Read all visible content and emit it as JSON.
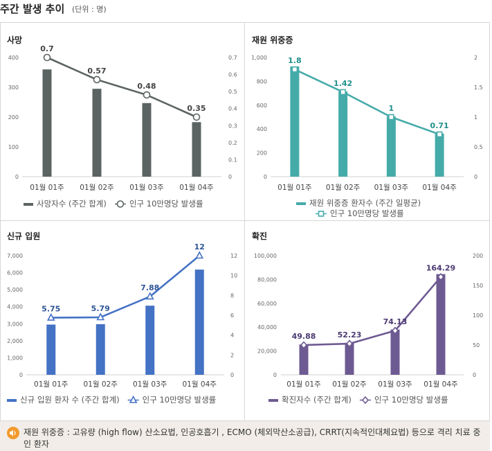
{
  "header": {
    "title": "주간 발생 추이",
    "unit": "(단위 : 명)"
  },
  "chart_data": [
    {
      "type": "bar+line",
      "title": "사망",
      "categories": [
        "01월 01주",
        "01월 02주",
        "01월 03주",
        "01월 04주"
      ],
      "bar_series": {
        "name": "사망자수 (주간 합계)",
        "values": [
          360,
          295,
          247,
          183
        ],
        "color": "#5b6462"
      },
      "line_series": {
        "name": "인구 10만명당 발생률",
        "values": [
          0.7,
          0.57,
          0.48,
          0.35
        ],
        "labels": [
          "0.7",
          "0.57",
          "0.48",
          "0.35"
        ],
        "color": "#5b6462",
        "marker": "circle"
      },
      "y_left": {
        "ticks": [
          0,
          100,
          200,
          300,
          400
        ],
        "tick_labels": [
          "0",
          "100",
          "200",
          "300",
          "400"
        ],
        "range": [
          0,
          400
        ]
      },
      "y_right": {
        "ticks": [
          0,
          0.1,
          0.2,
          0.3,
          0.4,
          0.5,
          0.6,
          0.7
        ],
        "tick_labels": [
          "0",
          "0.1",
          "0.2",
          "0.3",
          "0.4",
          "0.5",
          "0.6",
          "0.7"
        ],
        "range": [
          0,
          0.7
        ]
      },
      "label_color": "#444444",
      "legend_wrap": false
    },
    {
      "type": "bar+line",
      "title": "재원 위중증",
      "categories": [
        "01월 01주",
        "01월 02주",
        "01월 03주",
        "01월 04주"
      ],
      "bar_series": {
        "name": "재원 위중증 환자수 (주간 일평균)",
        "values": [
          925,
          715,
          505,
          362
        ],
        "color": "#45aba9"
      },
      "line_series": {
        "name": "인구 10만명당 발생률",
        "values": [
          1.8,
          1.42,
          1.0,
          0.71
        ],
        "labels": [
          "1.8",
          "1.42",
          "1",
          "0.71"
        ],
        "color": "#45aba9",
        "marker": "square"
      },
      "y_left": {
        "ticks": [
          0,
          200,
          400,
          600,
          800,
          1000
        ],
        "tick_labels": [
          "0",
          "200",
          "400",
          "600",
          "800",
          "1,000"
        ],
        "range": [
          0,
          1000
        ]
      },
      "y_right": {
        "ticks": [
          0,
          0.5,
          1,
          1.5,
          2
        ],
        "tick_labels": [
          "0",
          "0.5",
          "1",
          "1.5",
          "2"
        ],
        "range": [
          0,
          2
        ]
      },
      "label_color": "#1f8f8a",
      "legend_wrap": true
    },
    {
      "type": "bar+line",
      "title": "신규 입원",
      "categories": [
        "01월 01주",
        "01월 02주",
        "01월 03주",
        "01월 04주"
      ],
      "bar_series": {
        "name": "신규 입원 환자 수 (주간 합계)",
        "values": [
          2950,
          2975,
          4060,
          6180
        ],
        "color": "#4472c4"
      },
      "line_series": {
        "name": "인구 10만명당 발생률",
        "values": [
          5.75,
          5.79,
          7.88,
          12
        ],
        "labels": [
          "5.75",
          "5.79",
          "7.88",
          "12"
        ],
        "color": "#4472c4",
        "marker": "triangle"
      },
      "y_left": {
        "ticks": [
          0,
          1000,
          2000,
          3000,
          4000,
          5000,
          6000,
          7000
        ],
        "tick_labels": [
          "0",
          "1,000",
          "2,000",
          "3,000",
          "4,000",
          "5,000",
          "6,000",
          "7,000"
        ],
        "range": [
          0,
          7000
        ]
      },
      "y_right": {
        "ticks": [
          0,
          2,
          4,
          6,
          8,
          10,
          12
        ],
        "tick_labels": [
          "0",
          "2",
          "4",
          "6",
          "8",
          "10",
          "12"
        ],
        "range": [
          0,
          12
        ]
      },
      "label_color": "#2f5597",
      "legend_wrap": false
    },
    {
      "type": "bar+line",
      "title": "확진",
      "categories": [
        "01월 01주",
        "01월 02주",
        "01월 03주",
        "01월 04주"
      ],
      "bar_series": {
        "name": "확진자수 (주간 합계)",
        "values": [
          25500,
          26800,
          38000,
          84500
        ],
        "color": "#6e5a92"
      },
      "line_series": {
        "name": "인구 10만명당 발생률",
        "values": [
          49.88,
          52.23,
          74.13,
          164.29
        ],
        "labels": [
          "49.88",
          "52.23",
          "74.13",
          "164.29"
        ],
        "color": "#6e5a92",
        "marker": "diamond"
      },
      "y_left": {
        "ticks": [
          0,
          20000,
          40000,
          60000,
          80000,
          100000
        ],
        "tick_labels": [
          "0",
          "20,000",
          "40,000",
          "60,000",
          "80,000",
          "100,000"
        ],
        "range": [
          0,
          100000
        ]
      },
      "y_right": {
        "ticks": [
          0,
          50,
          100,
          150,
          200
        ],
        "tick_labels": [
          "0",
          "50",
          "100",
          "150",
          "200"
        ],
        "range": [
          0,
          200
        ]
      },
      "label_color": "#4b3a72",
      "legend_wrap": false
    }
  ],
  "footnote": {
    "icon": "speaker-icon",
    "text": "재원 위중증 : 고유량 (high flow) 산소요법, 인공호흡기 , ECMO (체외막산소공급), CRRT(지속적인대체요법) 등으로 격리 치료 중인 환자"
  }
}
